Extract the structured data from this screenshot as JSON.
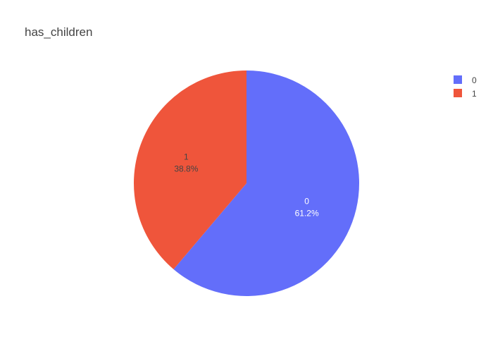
{
  "chart_data": {
    "type": "pie",
    "title": "has_children",
    "labels": [
      "0",
      "1"
    ],
    "values": [
      61.2,
      38.8
    ],
    "value_labels": [
      "61.2%",
      "38.8%"
    ],
    "colors": [
      "#636efa",
      "#ef553b"
    ],
    "text_colors": [
      "#ffffff",
      "#444444"
    ],
    "legend": {
      "position": "top-right",
      "entries": [
        "0",
        "1"
      ]
    }
  }
}
